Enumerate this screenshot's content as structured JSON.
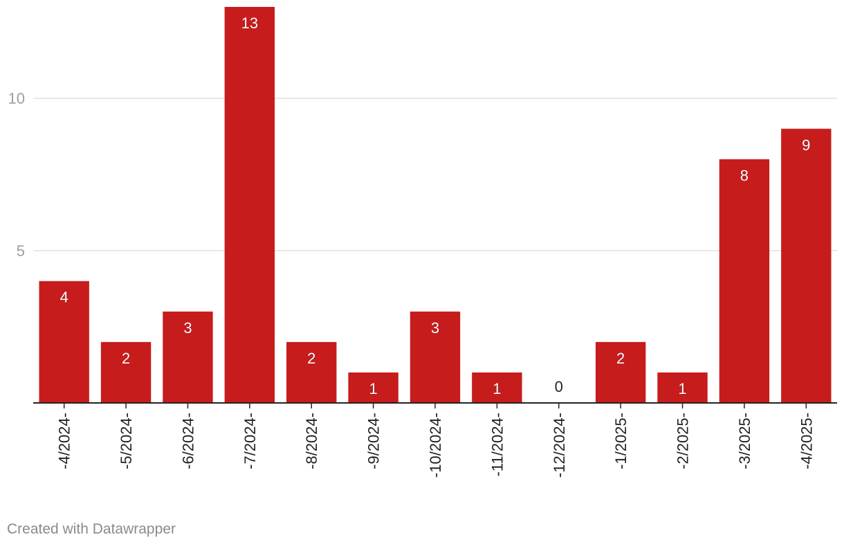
{
  "chart_data": {
    "type": "bar",
    "categories": [
      "-4/2024-",
      "-5/2024-",
      "-6/2024-",
      "-7/2024-",
      "-8/2024-",
      "-9/2024-",
      "-10/2024-",
      "-11/2024-",
      "-12/2024-",
      "-1/2025-",
      "-2/2025-",
      "-3/2025-",
      "-4/2025-"
    ],
    "values": [
      4,
      2,
      3,
      13,
      2,
      1,
      3,
      1,
      0,
      2,
      1,
      8,
      9
    ],
    "y_ticks": [
      5,
      10
    ],
    "ylim": [
      0,
      13
    ],
    "grid": true,
    "bar_color": "#c71c1c",
    "label_inside_color": "#ffffff",
    "label_outside_color": "#222222",
    "tick_color": "#9e9e9e",
    "gridline_color": "#e0e0e0",
    "axis_color": "#222222"
  },
  "footer": {
    "credit": "Created with Datawrapper"
  }
}
